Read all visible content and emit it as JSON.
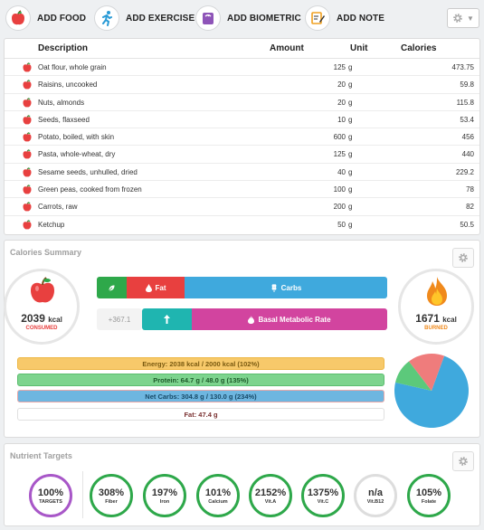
{
  "toolbar": {
    "add_food": "ADD FOOD",
    "add_exercise": "ADD EXERCISE",
    "add_biometric": "ADD BIOMETRIC",
    "add_note": "ADD NOTE"
  },
  "food_table": {
    "headers": {
      "description": "Description",
      "amount": "Amount",
      "unit": "Unit",
      "calories": "Calories"
    },
    "rows": [
      {
        "description": "Oat flour, whole grain",
        "amount": "125",
        "unit": "g",
        "calories": "473.75"
      },
      {
        "description": "Raisins, uncooked",
        "amount": "20",
        "unit": "g",
        "calories": "59.8"
      },
      {
        "description": "Nuts, almonds",
        "amount": "20",
        "unit": "g",
        "calories": "115.8"
      },
      {
        "description": "Seeds, flaxseed",
        "amount": "10",
        "unit": "g",
        "calories": "53.4"
      },
      {
        "description": "Potato, boiled, with skin",
        "amount": "600",
        "unit": "g",
        "calories": "456"
      },
      {
        "description": "Pasta, whole-wheat, dry",
        "amount": "125",
        "unit": "g",
        "calories": "440"
      },
      {
        "description": "Sesame seeds, unhulled, dried",
        "amount": "40",
        "unit": "g",
        "calories": "229.2"
      },
      {
        "description": "Green peas, cooked from frozen",
        "amount": "100",
        "unit": "g",
        "calories": "78"
      },
      {
        "description": "Carrots, raw",
        "amount": "200",
        "unit": "g",
        "calories": "82"
      },
      {
        "description": "Ketchup",
        "amount": "50",
        "unit": "g",
        "calories": "50.5"
      }
    ]
  },
  "calories_summary": {
    "title": "Calories Summary",
    "consumed": {
      "value": "2039",
      "unit": "kcal",
      "label": "CONSUMED"
    },
    "burned": {
      "value": "1671",
      "unit": "kcal",
      "label": "BURNED"
    },
    "intake_bar": {
      "fat_label": "Fat",
      "carbs_label": "Carbs"
    },
    "burn_bar": {
      "delta": "+367.1",
      "bmr_label": "Basal Metabolic Rate"
    },
    "targets": [
      {
        "text": "Energy: 2038 kcal / 2000 kcal (102%)",
        "fill": 1.0
      },
      {
        "text": "Protein: 64.7 g / 48.0 g (135%)",
        "fill": 1.0
      },
      {
        "text": "Net Carbs: 304.8 g / 130.0 g (234%)",
        "fill": 1.0
      },
      {
        "text": "Fat: 47.4 g",
        "fill": 0
      }
    ],
    "pie": [
      {
        "name": "carbs",
        "share": 0.73,
        "color": "#3fa9dd"
      },
      {
        "name": "protein",
        "share": 0.11,
        "color": "#5cc97b"
      },
      {
        "name": "fat",
        "share": 0.16,
        "color": "#ef7c7c"
      }
    ],
    "colors": {
      "green": "#2ea84a",
      "red": "#e8403f",
      "blue": "#3fa9dd",
      "teal": "#1fb5b0",
      "pink": "#d2449f"
    }
  },
  "nutrient_targets": {
    "title": "Nutrient Targets",
    "items": [
      {
        "value": "100%",
        "label": "TARGETS",
        "color": "#a857c8"
      },
      {
        "value": "308%",
        "label": "Fiber",
        "color": "#2ea84a"
      },
      {
        "value": "197%",
        "label": "Iron",
        "color": "#2ea84a"
      },
      {
        "value": "101%",
        "label": "Calcium",
        "color": "#2ea84a"
      },
      {
        "value": "2152%",
        "label": "Vit.A",
        "color": "#2ea84a"
      },
      {
        "value": "1375%",
        "label": "Vit.C",
        "color": "#2ea84a"
      },
      {
        "value": "n/a",
        "label": "Vit.B12",
        "color": "#dddddd"
      },
      {
        "value": "105%",
        "label": "Folate",
        "color": "#2ea84a"
      }
    ]
  }
}
